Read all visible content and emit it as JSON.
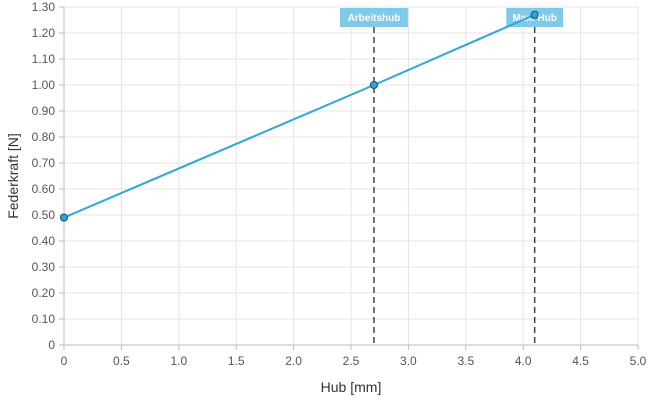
{
  "chart_data": {
    "type": "line",
    "xlabel": "Hub [mm]",
    "ylabel": "Federkraft [N]",
    "xlim": [
      0,
      5.0
    ],
    "ylim": [
      0,
      1.3
    ],
    "x_ticks": [
      "0",
      "0.5",
      "1.0",
      "1.5",
      "2.0",
      "2.5",
      "3.0",
      "3.5",
      "4.0",
      "4.5",
      "5.0"
    ],
    "y_ticks": [
      "0",
      "0.10",
      "0.20",
      "0.30",
      "0.40",
      "0.50",
      "0.60",
      "0.70",
      "0.80",
      "0.90",
      "1.00",
      "1.10",
      "1.20",
      "1.30"
    ],
    "grid": true,
    "series": [
      {
        "x": [
          0,
          2.7,
          4.1
        ],
        "y": [
          0.49,
          1.0,
          1.27
        ],
        "color": "#2ea7d8"
      }
    ],
    "markers": [
      {
        "label": "Arbeitshub",
        "x": 2.7
      },
      {
        "label": "Max. Hub",
        "x": 4.1
      }
    ],
    "marker_label_color": "#7fcae8"
  }
}
